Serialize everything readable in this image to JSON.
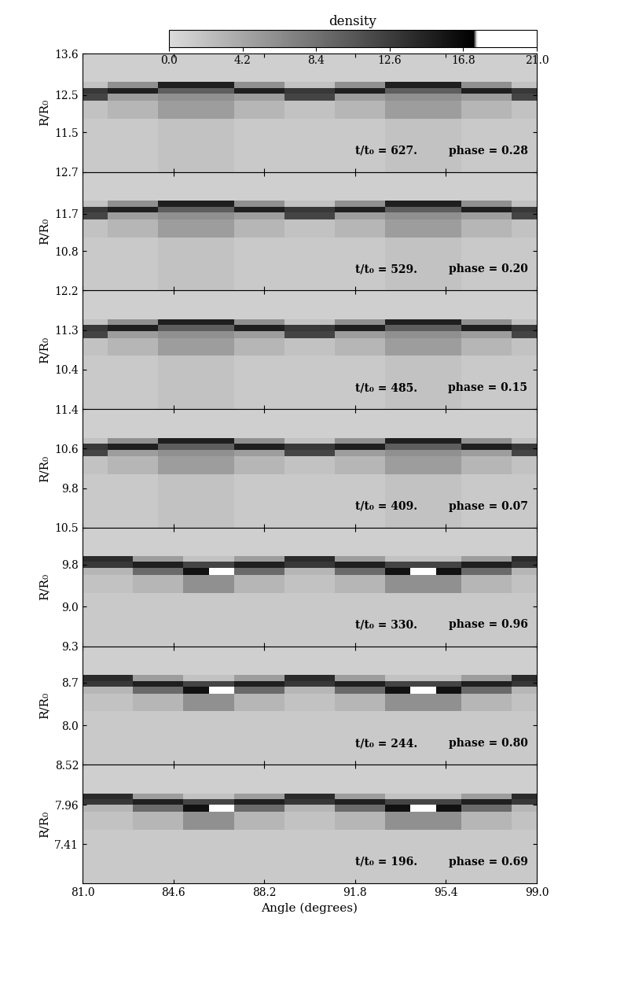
{
  "chart_data": {
    "type": "heatmap",
    "xlabel": "Angle (degrees)",
    "ylabel": "R/R₀",
    "xlim": [
      81.0,
      99.0
    ],
    "xticks": [
      81.0,
      84.6,
      88.2,
      91.8,
      95.4,
      99.0
    ],
    "x_edges": [
      81,
      82,
      83,
      84,
      85,
      86,
      87,
      88,
      89,
      90,
      91,
      92,
      93,
      94,
      95,
      96,
      97,
      98,
      99
    ],
    "colorbar": {
      "label": "density",
      "range": [
        0.0,
        21.0
      ],
      "ticks": [
        0.0,
        4.2,
        8.4,
        12.6,
        16.8,
        21.0
      ]
    },
    "panels": [
      {
        "time_label": "t/t₀ = 627.",
        "phase_label": "phase = 0.28",
        "ylim": [
          10.45,
          13.6
        ],
        "yticks": [
          11.5,
          12.5,
          13.6
        ],
        "y_edges": [
          10.45,
          11.87,
          12.34,
          12.53,
          12.69,
          12.84,
          13.6
        ],
        "cells": [
          [
            1.5,
            1.5,
            1.5,
            2,
            2,
            2,
            1.5,
            1.5,
            1.5,
            1.5,
            1.5,
            1.5,
            2,
            2,
            2,
            1.5,
            1.5,
            1.5
          ],
          [
            2,
            3,
            3,
            5,
            5,
            5,
            3,
            3,
            2,
            2,
            3,
            3,
            5,
            5,
            5,
            3,
            3,
            2
          ],
          [
            12,
            5,
            5,
            6,
            6,
            6,
            5,
            5,
            12,
            12,
            5,
            5,
            6,
            6,
            6,
            5,
            5,
            12
          ],
          [
            13,
            15,
            15,
            10,
            10,
            10,
            15,
            15,
            13,
            13,
            15,
            15,
            10,
            10,
            10,
            15,
            15,
            13
          ],
          [
            2,
            6,
            6,
            15,
            15,
            15,
            6,
            6,
            2,
            2,
            6,
            6,
            15,
            15,
            15,
            6,
            6,
            2
          ],
          [
            1,
            1,
            1,
            1,
            1,
            1,
            1,
            1,
            1,
            1,
            1,
            1,
            1,
            1,
            1,
            1,
            1,
            1
          ]
        ]
      },
      {
        "time_label": "t/t₀ = 529.",
        "phase_label": "phase = 0.20",
        "ylim": [
          9.85,
          12.7
        ],
        "yticks": [
          10.8,
          11.7,
          12.7
        ],
        "y_edges": [
          9.85,
          11.13,
          11.56,
          11.73,
          11.87,
          12.02,
          12.7
        ],
        "cells": [
          [
            1.5,
            1.5,
            1.5,
            2,
            2,
            2,
            1.5,
            1.5,
            1.5,
            1.5,
            1.5,
            1.5,
            2,
            2,
            2,
            1.5,
            1.5,
            1.5
          ],
          [
            2,
            3,
            3,
            5,
            5,
            5,
            3,
            3,
            2,
            2,
            3,
            3,
            5,
            5,
            5,
            3,
            3,
            2
          ],
          [
            12,
            5,
            5,
            6,
            6,
            6,
            5,
            5,
            12,
            12,
            5,
            5,
            6,
            6,
            6,
            5,
            5,
            12
          ],
          [
            13,
            15,
            15,
            10,
            10,
            10,
            15,
            15,
            13,
            13,
            15,
            15,
            10,
            10,
            10,
            15,
            15,
            13
          ],
          [
            2,
            6,
            6,
            15,
            15,
            15,
            6,
            6,
            2,
            2,
            6,
            6,
            15,
            15,
            15,
            6,
            6,
            2
          ],
          [
            1,
            1,
            1,
            1,
            1,
            1,
            1,
            1,
            1,
            1,
            1,
            1,
            1,
            1,
            1,
            1,
            1,
            1
          ]
        ]
      },
      {
        "time_label": "t/t₀ = 485.",
        "phase_label": "phase = 0.15",
        "ylim": [
          9.5,
          12.2
        ],
        "yticks": [
          10.4,
          11.3,
          12.2
        ],
        "y_edges": [
          9.5,
          10.72,
          11.12,
          11.28,
          11.42,
          11.55,
          12.2
        ],
        "cells": [
          [
            1.5,
            1.5,
            1.5,
            2,
            2,
            2,
            1.5,
            1.5,
            1.5,
            1.5,
            1.5,
            1.5,
            2,
            2,
            2,
            1.5,
            1.5,
            1.5
          ],
          [
            2,
            3,
            3,
            5,
            5,
            5,
            3,
            3,
            2,
            2,
            3,
            3,
            5,
            5,
            5,
            3,
            3,
            2
          ],
          [
            12,
            5,
            5,
            6,
            6,
            6,
            5,
            5,
            12,
            12,
            5,
            5,
            6,
            6,
            6,
            5,
            5,
            12
          ],
          [
            13,
            15,
            15,
            10,
            10,
            10,
            15,
            15,
            13,
            13,
            15,
            15,
            10,
            10,
            10,
            15,
            15,
            13
          ],
          [
            2,
            6,
            6,
            15,
            15,
            15,
            6,
            6,
            2,
            2,
            6,
            6,
            15,
            15,
            15,
            6,
            6,
            2
          ],
          [
            1,
            1,
            1,
            1,
            1,
            1,
            1,
            1,
            1,
            1,
            1,
            1,
            1,
            1,
            1,
            1,
            1,
            1
          ]
        ]
      },
      {
        "time_label": "t/t₀ = 409.",
        "phase_label": "phase = 0.07",
        "ylim": [
          9.0,
          11.4
        ],
        "yticks": [
          9.8,
          10.6,
          11.4
        ],
        "y_edges": [
          9.0,
          10.08,
          10.44,
          10.58,
          10.7,
          10.82,
          11.4
        ],
        "cells": [
          [
            1.5,
            1.5,
            1.5,
            2,
            2,
            2,
            1.5,
            1.5,
            1.5,
            1.5,
            1.5,
            1.5,
            2,
            2,
            2,
            1.5,
            1.5,
            1.5
          ],
          [
            2,
            3,
            3,
            5,
            5,
            5,
            3,
            3,
            2,
            2,
            3,
            3,
            5,
            5,
            5,
            3,
            3,
            2
          ],
          [
            12,
            5,
            5,
            6,
            6,
            6,
            5,
            5,
            12,
            12,
            5,
            5,
            6,
            6,
            6,
            5,
            5,
            12
          ],
          [
            13,
            15,
            15,
            10,
            10,
            10,
            15,
            15,
            13,
            13,
            15,
            15,
            10,
            10,
            10,
            15,
            15,
            13
          ],
          [
            2,
            6,
            6,
            15,
            15,
            15,
            6,
            6,
            2,
            2,
            6,
            6,
            15,
            15,
            15,
            6,
            6,
            2
          ],
          [
            1,
            1,
            1,
            1,
            1,
            1,
            1,
            1,
            1,
            1,
            1,
            1,
            1,
            1,
            1,
            1,
            1,
            1
          ]
        ]
      },
      {
        "time_label": "t/t₀ = 330.",
        "phase_label": "phase = 0.96",
        "ylim": [
          8.25,
          10.5
        ],
        "yticks": [
          9.0,
          9.8,
          10.5
        ],
        "y_edges": [
          8.25,
          9.26,
          9.6,
          9.74,
          9.85,
          9.96,
          10.5
        ],
        "cells": [
          [
            1.5,
            1.5,
            1.5,
            1.5,
            1.5,
            1.5,
            1.5,
            1.5,
            1.5,
            1.5,
            1.5,
            1.5,
            1.5,
            1.5,
            1.5,
            1.5,
            1.5,
            1.5
          ],
          [
            2,
            2,
            3,
            3,
            6,
            6,
            3,
            3,
            2,
            2,
            3,
            3,
            6,
            6,
            6,
            3,
            3,
            2
          ],
          [
            3,
            3,
            9,
            9,
            16,
            19,
            9,
            9,
            3,
            3,
            9,
            9,
            16,
            19,
            16,
            9,
            9,
            3
          ],
          [
            13,
            13,
            15,
            15,
            12,
            12,
            15,
            15,
            13,
            13,
            15,
            15,
            12,
            12,
            12,
            15,
            15,
            13
          ],
          [
            14,
            14,
            5,
            5,
            2,
            2,
            5,
            5,
            14,
            14,
            5,
            5,
            2,
            2,
            2,
            5,
            5,
            14
          ],
          [
            1,
            1,
            1,
            1,
            1,
            1,
            1,
            1,
            1,
            1,
            1,
            1,
            1,
            1,
            1,
            1,
            1,
            1
          ]
        ]
      },
      {
        "time_label": "t/t₀ = 244.",
        "phase_label": "phase = 0.80",
        "ylim": [
          7.35,
          9.3
        ],
        "yticks": [
          8.0,
          8.7,
          9.3
        ],
        "y_edges": [
          7.35,
          8.23,
          8.52,
          8.64,
          8.73,
          8.83,
          9.3
        ],
        "cells": [
          [
            1.5,
            1.5,
            1.5,
            1.5,
            1.5,
            1.5,
            1.5,
            1.5,
            1.5,
            1.5,
            1.5,
            1.5,
            1.5,
            1.5,
            1.5,
            1.5,
            1.5,
            1.5
          ],
          [
            2,
            2,
            3,
            3,
            6,
            6,
            3,
            3,
            2,
            2,
            3,
            3,
            6,
            6,
            6,
            3,
            3,
            2
          ],
          [
            3,
            3,
            9,
            9,
            16,
            19,
            9,
            9,
            3,
            3,
            9,
            9,
            16,
            19,
            16,
            9,
            9,
            3
          ],
          [
            13,
            13,
            15,
            15,
            12,
            12,
            15,
            15,
            13,
            13,
            15,
            15,
            12,
            12,
            12,
            15,
            15,
            13
          ],
          [
            14,
            14,
            5,
            5,
            2,
            2,
            5,
            5,
            14,
            14,
            5,
            5,
            2,
            2,
            2,
            5,
            5,
            14
          ],
          [
            1,
            1,
            1,
            1,
            1,
            1,
            1,
            1,
            1,
            1,
            1,
            1,
            1,
            1,
            1,
            1,
            1,
            1
          ]
        ]
      },
      {
        "time_label": "t/t₀ = 196.",
        "phase_label": "phase = 0.69",
        "ylim": [
          6.86,
          8.52
        ],
        "yticks": [
          7.41,
          7.96,
          8.52
        ],
        "y_edges": [
          6.86,
          7.61,
          7.86,
          7.96,
          8.04,
          8.12,
          8.52
        ],
        "cells": [
          [
            1.5,
            1.5,
            1.5,
            1.5,
            1.5,
            1.5,
            1.5,
            1.5,
            1.5,
            1.5,
            1.5,
            1.5,
            1.5,
            1.5,
            1.5,
            1.5,
            1.5,
            1.5
          ],
          [
            2,
            2,
            3,
            3,
            6,
            6,
            3,
            3,
            2,
            2,
            3,
            3,
            6,
            6,
            6,
            3,
            3,
            2
          ],
          [
            3,
            3,
            9,
            9,
            16,
            19,
            9,
            9,
            3,
            3,
            9,
            9,
            16,
            19,
            16,
            9,
            9,
            3
          ],
          [
            13,
            13,
            15,
            15,
            12,
            12,
            15,
            15,
            13,
            13,
            15,
            15,
            12,
            12,
            12,
            15,
            15,
            13
          ],
          [
            14,
            14,
            5,
            5,
            2,
            2,
            5,
            5,
            14,
            14,
            5,
            5,
            2,
            2,
            2,
            5,
            5,
            14
          ],
          [
            1,
            1,
            1,
            1,
            1,
            1,
            1,
            1,
            1,
            1,
            1,
            1,
            1,
            1,
            1,
            1,
            1,
            1
          ]
        ]
      }
    ]
  }
}
